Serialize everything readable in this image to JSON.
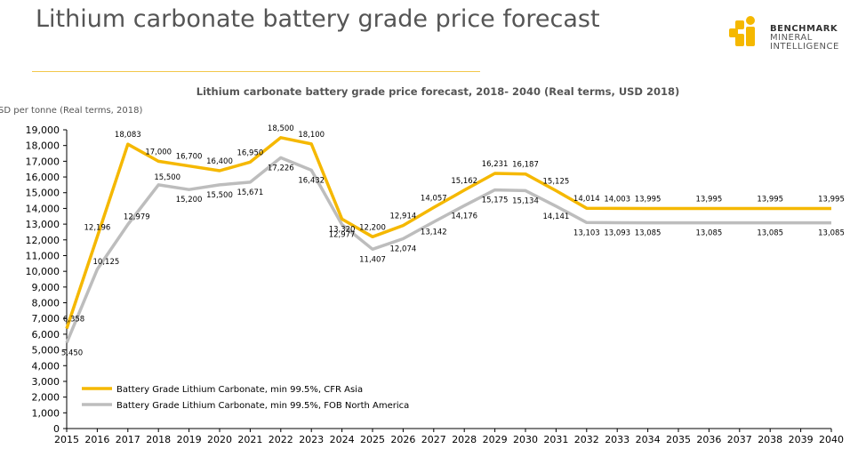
{
  "slide": {
    "title": "Lithium carbonate battery grade price forecast"
  },
  "logo": {
    "line1": "BENCHMARK",
    "line2": "MINERAL",
    "line3": "INTELLIGENCE",
    "colors": {
      "yellow": "#f5b800",
      "dark": "#333333"
    }
  },
  "colors": {
    "cfr_asia": "#f5b800",
    "fob_na": "#bdbdbd",
    "rule": "#f2c84b"
  },
  "chart_data": {
    "type": "line",
    "title": "Lithium carbonate battery grade price forecast, 2018- 2040 (Real terms, USD 2018)",
    "ylabel": "SD per tonne (Real terms, 2018)",
    "xlabel": "",
    "ylim": [
      0,
      19000
    ],
    "yticks": [
      "0",
      "1,000",
      "2,000",
      "3,000",
      "4,000",
      "5,000",
      "6,000",
      "7,000",
      "8,000",
      "9,000",
      "10,000",
      "11,000",
      "12,000",
      "13,000",
      "14,000",
      "15,000",
      "16,000",
      "17,000",
      "18,000",
      "19,000"
    ],
    "x": [
      "2015",
      "2016",
      "2017",
      "2018",
      "2019",
      "2020",
      "2021",
      "2022",
      "2023",
      "2024",
      "2025",
      "2026",
      "2027",
      "2028",
      "2029",
      "2030",
      "2031",
      "2032",
      "2033",
      "2034",
      "2035",
      "2036",
      "2037",
      "2038",
      "2039",
      "2040"
    ],
    "legend_position": "bottom-left",
    "series": [
      {
        "name": "Battery Grade Lithium Carbonate, min 99.5%, CFR Asia",
        "values": [
          6358,
          12196,
          18083,
          17000,
          16700,
          16400,
          16950,
          18500,
          18100,
          13320,
          12200,
          12914,
          14057,
          15162,
          16231,
          16187,
          15125,
          14014,
          14003,
          13995,
          13995,
          13995,
          13995,
          13995,
          13995,
          13995
        ],
        "labels": [
          "6,358",
          "12,196",
          "18,083",
          "17,000",
          "16,700",
          "16,400",
          "16,950",
          "18,500",
          "18,100",
          "13,320",
          "12,200",
          "12,914",
          "14,057",
          "15,162",
          "16,231",
          "16,187",
          "15,125",
          "14,014",
          "14,003",
          "13,995",
          "",
          "13,995",
          "",
          "13,995",
          "",
          "13,995"
        ]
      },
      {
        "name": "Battery Grade Lithium Carbonate, min 99.5%, FOB North America",
        "values": [
          5450,
          10125,
          12979,
          15500,
          15200,
          15500,
          15671,
          17226,
          16432,
          12977,
          11407,
          12074,
          13142,
          14176,
          15175,
          15134,
          14141,
          13103,
          13093,
          13085,
          13085,
          13085,
          13085,
          13085,
          13085,
          13085
        ],
        "labels": [
          "5,450",
          "10,125",
          "12,979",
          "15,500",
          "15,200",
          "15,500",
          "15,671",
          "17,226",
          "16,432",
          "12,977",
          "11,407",
          "12,074",
          "13,142",
          "14,176",
          "15,175",
          "15,134",
          "14,141",
          "13,103",
          "13,093",
          "13,085",
          "",
          "13,085",
          "",
          "13,085",
          "",
          "13,085"
        ]
      }
    ]
  }
}
